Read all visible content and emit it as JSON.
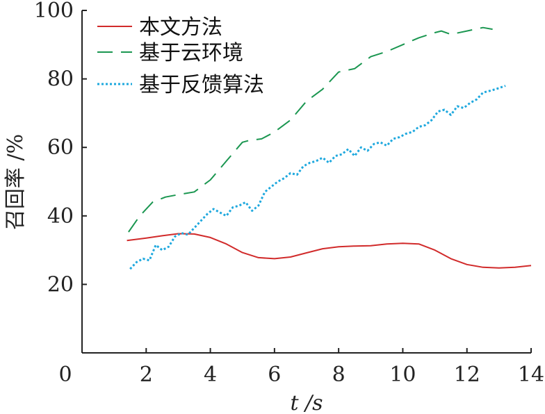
{
  "chart_data": {
    "type": "line",
    "title": "",
    "xlabel": "t /s",
    "ylabel": "召回率 /%",
    "xlim": [
      0,
      14
    ],
    "ylim": [
      0,
      100
    ],
    "x_ticks": [
      0,
      2,
      4,
      6,
      8,
      10,
      12,
      14
    ],
    "y_ticks": [
      20,
      40,
      60,
      80,
      100
    ],
    "y_tick_labels": [
      "20",
      "40",
      "60",
      "80",
      "100"
    ],
    "x_tick_labels": [
      "0",
      "2",
      "4",
      "6",
      "8",
      "10",
      "12",
      "14"
    ],
    "grid": false,
    "legend_position": "top-left",
    "series": [
      {
        "name": "本文方法",
        "color": "#d12a2a",
        "style": "solid",
        "x": [
          1.4,
          2.0,
          2.5,
          3.0,
          3.5,
          4.0,
          4.5,
          5.0,
          5.5,
          6.0,
          6.5,
          7.0,
          7.5,
          8.0,
          8.5,
          9.0,
          9.5,
          10.0,
          10.5,
          11.0,
          11.5,
          12.0,
          12.5,
          13.0,
          13.5,
          14.0
        ],
        "y": [
          32.8,
          33.5,
          34.2,
          34.8,
          34.7,
          33.7,
          31.8,
          29.3,
          27.8,
          27.5,
          28.0,
          29.2,
          30.4,
          31.0,
          31.2,
          31.3,
          31.8,
          32.0,
          31.8,
          30.0,
          27.5,
          25.8,
          25.0,
          24.8,
          25.0,
          25.5
        ]
      },
      {
        "name": "基于云环境",
        "color": "#1a9650",
        "style": "dashed",
        "x": [
          1.45,
          1.8,
          2.2,
          2.6,
          3.0,
          3.5,
          4.0,
          4.5,
          5.0,
          5.2,
          5.6,
          6.0,
          6.5,
          7.0,
          7.5,
          8.0,
          8.5,
          9.0,
          9.5,
          10.0,
          10.5,
          11.0,
          11.2,
          11.5,
          12.0,
          12.5,
          12.8
        ],
        "y": [
          35.3,
          40.0,
          44.0,
          45.5,
          46.2,
          47.0,
          50.5,
          56.0,
          61.5,
          62.0,
          62.5,
          64.5,
          68.0,
          73.5,
          77.0,
          82.0,
          83.0,
          86.5,
          88.0,
          90.0,
          92.0,
          93.5,
          94.0,
          93.0,
          94.0,
          95.0,
          94.5
        ]
      },
      {
        "name": "基于反馈算法",
        "color": "#1ea8de",
        "style": "dotted",
        "x": [
          1.5,
          1.7,
          1.9,
          2.1,
          2.3,
          2.5,
          2.7,
          2.9,
          3.1,
          3.3,
          3.5,
          3.7,
          3.9,
          4.1,
          4.3,
          4.5,
          4.7,
          4.9,
          5.1,
          5.3,
          5.5,
          5.7,
          5.9,
          6.1,
          6.3,
          6.5,
          6.7,
          6.9,
          7.1,
          7.3,
          7.5,
          7.7,
          7.9,
          8.1,
          8.3,
          8.5,
          8.7,
          8.9,
          9.1,
          9.3,
          9.5,
          9.7,
          9.9,
          10.1,
          10.3,
          10.5,
          10.7,
          10.9,
          11.1,
          11.3,
          11.5,
          11.7,
          11.9,
          12.1,
          12.3,
          12.5,
          12.7,
          12.9,
          13.2
        ],
        "y": [
          24.5,
          26.5,
          27.5,
          27.0,
          31.5,
          30.0,
          31.0,
          34.0,
          35.0,
          34.5,
          36.5,
          38.5,
          40.5,
          42.0,
          41.0,
          40.0,
          42.5,
          43.0,
          44.0,
          41.5,
          43.0,
          47.0,
          48.5,
          50.0,
          51.0,
          52.5,
          52.0,
          54.5,
          55.5,
          56.0,
          57.0,
          55.5,
          57.5,
          58.0,
          59.5,
          57.5,
          60.0,
          59.0,
          61.0,
          61.5,
          60.5,
          62.5,
          63.0,
          64.0,
          64.5,
          66.0,
          66.5,
          68.0,
          70.5,
          71.0,
          69.5,
          72.0,
          71.5,
          73.0,
          74.0,
          76.0,
          76.5,
          77.0,
          78.0
        ]
      }
    ]
  }
}
